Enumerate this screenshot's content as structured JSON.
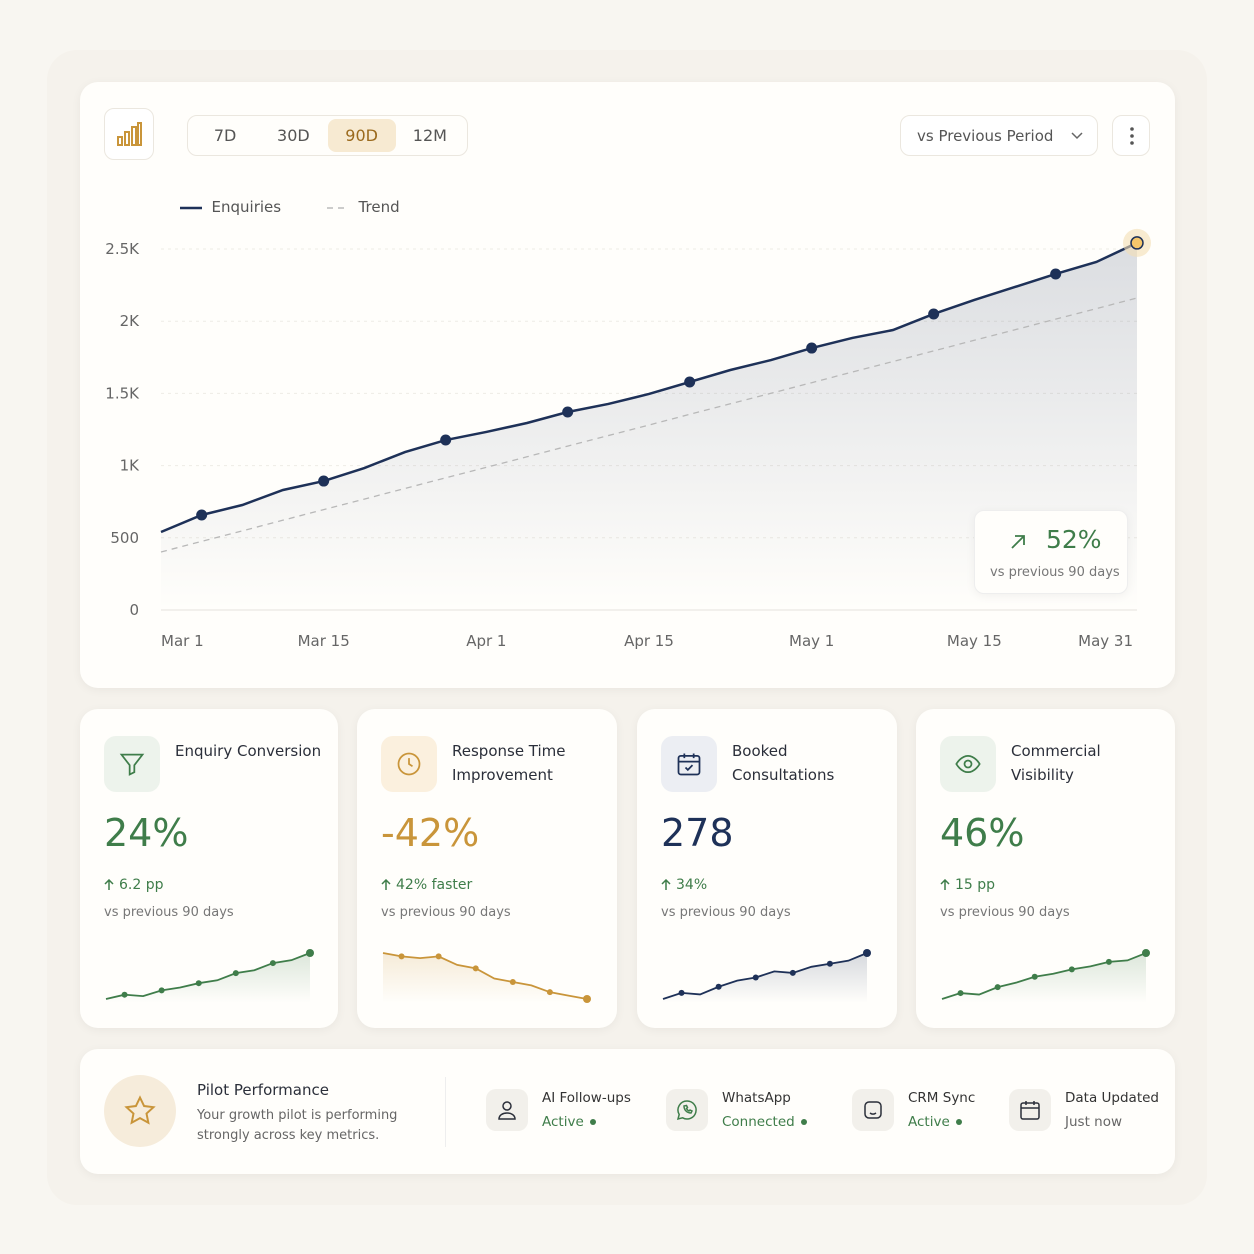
{
  "toolbar": {
    "ranges": [
      "7D",
      "30D",
      "90D",
      "12M"
    ],
    "compare": "vs Previous Period"
  },
  "chart_data": {
    "type": "line",
    "categories": [
      "Mar 1",
      null,
      null,
      null,
      "Mar 15",
      null,
      null,
      null,
      "Apr 1",
      null,
      null,
      null,
      "Apr 15",
      null,
      null,
      null,
      "May 1",
      null,
      null,
      null,
      "May 15",
      null,
      null,
      null,
      "May 31"
    ],
    "series": [
      {
        "name": "Enquiries",
        "color": "#1e3158",
        "values": [
          540,
          658,
          727,
          831,
          893,
          983,
          1094,
          1177,
          1233,
          1295,
          1371,
          1427,
          1496,
          1579,
          1662,
          1731,
          1814,
          1884,
          1939,
          2050,
          2147,
          2237,
          2327,
          2410,
          2542
        ]
      },
      {
        "name": "Trend",
        "color": "#b8b8b8",
        "dashed": true,
        "values": [
          402,
          475,
          548,
          622,
          695,
          768,
          842,
          915,
          988,
          1061,
          1135,
          1208,
          1281,
          1355,
          1428,
          1501,
          1574,
          1648,
          1721,
          1794,
          1868,
          1941,
          2014,
          2087,
          2161
        ]
      }
    ],
    "ylim": [
      0,
      2500
    ],
    "yticks": [
      0,
      500,
      {
        "value": 1000,
        "label": "1K"
      },
      {
        "value": 1500,
        "label": "1.5K"
      },
      {
        "value": 2000,
        "label": "2K"
      },
      {
        "value": 2500,
        "label": "2.5K"
      }
    ],
    "grid": true,
    "badge": {
      "value": "52%",
      "note": "vs previous 90 days"
    }
  },
  "kpis": [
    {
      "title": "Enquiry Conversion",
      "value": "24%",
      "delta": "6.2 pp",
      "note": "vs previous 90 days",
      "color": "#3f7d4a",
      "spark": [
        10,
        13,
        12,
        16,
        18,
        21,
        23,
        28,
        30,
        35,
        37,
        42
      ]
    },
    {
      "title": "Response Time Improvement",
      "value": "-42%",
      "delta": "42% faster",
      "note": "vs previous 90 days",
      "color": "#c9953a",
      "spark": [
        42,
        40,
        39,
        40,
        35,
        33,
        27,
        25,
        23,
        19,
        17,
        15
      ]
    },
    {
      "title": "Booked Consultations",
      "value": "278",
      "delta": "34%",
      "note": "vs previous 90 days",
      "color": "#1e3158",
      "spark": [
        8,
        12,
        11,
        16,
        20,
        22,
        26,
        25,
        29,
        31,
        33,
        38
      ]
    },
    {
      "title": "Commercial Visibility",
      "value": "46%",
      "delta": "15 pp",
      "note": "vs previous 90 days",
      "color": "#3f7d4a",
      "spark": [
        9,
        13,
        12,
        17,
        20,
        24,
        26,
        29,
        31,
        34,
        35,
        40
      ]
    }
  ],
  "footer": {
    "title": "Pilot Performance",
    "text": "Your growth pilot is performing strongly across key metrics.",
    "statuses": [
      {
        "label": "AI Follow-ups",
        "state": "Active"
      },
      {
        "label": "WhatsApp",
        "state": "Connected"
      },
      {
        "label": "CRM Sync",
        "state": "Active"
      },
      {
        "label": "Data Updated",
        "state": "Just now"
      }
    ]
  }
}
